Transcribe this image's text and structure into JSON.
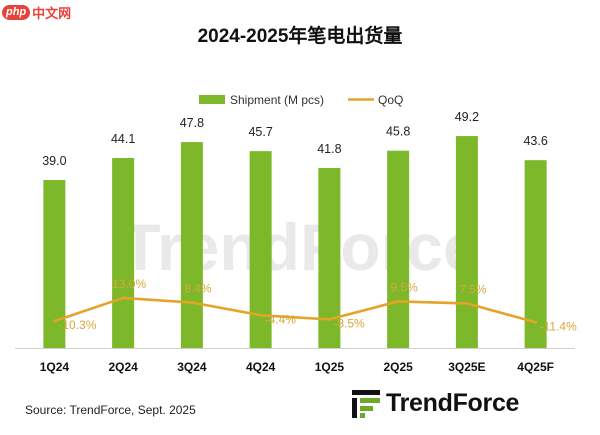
{
  "site": {
    "badge": "php",
    "name": "中文网"
  },
  "brand": "TrendForce",
  "source": "Source: TrendForce, Sept. 2025",
  "colors": {
    "bar": "#7cb829",
    "line": "#e3a427",
    "label": "#d9a73a",
    "watermark": "#e9e9e9",
    "logo_green": "#6cab2a"
  },
  "chart_data": {
    "type": "bar",
    "title": "2024-2025年笔电出货量",
    "categories": [
      "1Q24",
      "2Q24",
      "3Q24",
      "4Q24",
      "1Q25",
      "2Q25",
      "3Q25E",
      "4Q25F"
    ],
    "series": [
      {
        "name": "Shipment (M pcs)",
        "type": "bar",
        "axis": "left",
        "values": [
          39.0,
          44.1,
          47.8,
          45.7,
          41.8,
          45.8,
          49.2,
          43.6
        ],
        "labels": [
          "39.0",
          "44.1",
          "47.8",
          "45.7",
          "41.8",
          "45.8",
          "49.2",
          "43.6"
        ]
      },
      {
        "name": "QoQ",
        "type": "line",
        "axis": "right",
        "values": [
          -10.3,
          13.0,
          8.4,
          -4.4,
          -8.5,
          9.5,
          7.5,
          -11.4
        ],
        "labels": [
          "-10.3%",
          "13.0%",
          "8.4%",
          "-4.4%",
          "-8.5%",
          "9.5%",
          "7.5%",
          "-11.4%"
        ]
      }
    ],
    "ylim": [
      0,
      52
    ],
    "y2lim": [
      -60,
      35
    ],
    "legend": "top-center",
    "grid": false,
    "xlabel": "",
    "ylabel": ""
  }
}
